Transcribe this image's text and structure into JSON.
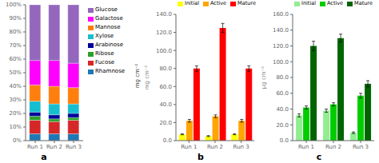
{
  "chart_data": [
    {
      "type": "bar",
      "title": "a",
      "stacked": true,
      "legend": "right",
      "categories": [
        "Run 1",
        "Run 2",
        "Run 3"
      ],
      "series": [
        {
          "name": "Rhamnose",
          "color": "#1F77B4",
          "values": [
            5,
            5,
            5
          ]
        },
        {
          "name": "Fucose",
          "color": "#D62728",
          "values": [
            10,
            9,
            10
          ]
        },
        {
          "name": "Ribose",
          "color": "#2CA02C",
          "values": [
            3,
            2,
            2
          ]
        },
        {
          "name": "Arabinose",
          "color": "#000099",
          "values": [
            3,
            3,
            3
          ]
        },
        {
          "name": "Xylose",
          "color": "#17BECF",
          "values": [
            8,
            8,
            7
          ]
        },
        {
          "name": "Mannose",
          "color": "#FF7F0E",
          "values": [
            12,
            13,
            12
          ]
        },
        {
          "name": "Galactose",
          "color": "#FF00FF",
          "values": [
            18,
            19,
            18
          ]
        },
        {
          "name": "Glucose",
          "color": "#9467BD",
          "values": [
            41,
            41,
            43
          ]
        }
      ],
      "ylim": [
        0,
        100
      ],
      "yticks": [
        {
          "value": 0,
          "label": "0%"
        },
        {
          "value": 10,
          "label": "10%"
        },
        {
          "value": 20,
          "label": "20%"
        },
        {
          "value": 30,
          "label": "30%"
        },
        {
          "value": 40,
          "label": "40%"
        },
        {
          "value": 50,
          "label": "50%"
        },
        {
          "value": 60,
          "label": "60%"
        },
        {
          "value": 70,
          "label": "70%"
        },
        {
          "value": 80,
          "label": "80%"
        },
        {
          "value": 90,
          "label": "90%"
        },
        {
          "value": 100,
          "label": "100%"
        }
      ]
    },
    {
      "type": "bar",
      "title": "b",
      "legend": "top",
      "ylabel": "mg cm⁻²",
      "annotations": [
        "mg cm⁻²"
      ],
      "categories": [
        "Run 1",
        "Run 2",
        "Run 3"
      ],
      "series": [
        {
          "name": "Initial",
          "color": "#FFFF00",
          "values": [
            7,
            5,
            7
          ],
          "errors": [
            0.5,
            0.5,
            0.5
          ]
        },
        {
          "name": "Active",
          "color": "#FFA500",
          "values": [
            22,
            27,
            22
          ],
          "errors": [
            1.5,
            1.5,
            1.5
          ]
        },
        {
          "name": "Mature",
          "color": "#FF0000",
          "values": [
            80,
            125,
            80
          ],
          "errors": [
            3,
            5,
            3
          ]
        }
      ],
      "ylim": [
        0,
        140
      ],
      "yticks": [
        {
          "value": 0,
          "label": "0.0"
        },
        {
          "value": 20,
          "label": "20.0"
        },
        {
          "value": 40,
          "label": "40.0"
        },
        {
          "value": 60,
          "label": "60.0"
        },
        {
          "value": 80,
          "label": "80.0"
        },
        {
          "value": 100,
          "label": "100.0"
        },
        {
          "value": 120,
          "label": "120.0"
        },
        {
          "value": 140,
          "label": "140.0"
        }
      ]
    },
    {
      "type": "bar",
      "title": "c",
      "legend": "top",
      "ylabel": "μg cm⁻²",
      "categories": [
        "Run 1",
        "Run 2",
        "Run 3"
      ],
      "series": [
        {
          "name": "Initial",
          "color": "#90EE90",
          "values": [
            32,
            38,
            10
          ],
          "errors": [
            2,
            2,
            1
          ]
        },
        {
          "name": "Active",
          "color": "#00CC00",
          "values": [
            42,
            46,
            57
          ],
          "errors": [
            2,
            2,
            3
          ]
        },
        {
          "name": "Mature",
          "color": "#006400",
          "values": [
            120,
            130,
            72
          ],
          "errors": [
            6,
            5,
            4
          ]
        }
      ],
      "ylim": [
        0,
        160
      ],
      "yticks": [
        {
          "value": 0,
          "label": "0.0"
        },
        {
          "value": 20,
          "label": "20.0"
        },
        {
          "value": 40,
          "label": "40.0"
        },
        {
          "value": 60,
          "label": "60.0"
        },
        {
          "value": 80,
          "label": "80.0"
        },
        {
          "value": 100,
          "label": "100.0"
        },
        {
          "value": 120,
          "label": "120.0"
        },
        {
          "value": 140,
          "label": "140.0"
        },
        {
          "value": 160,
          "label": "160.0"
        }
      ]
    }
  ]
}
